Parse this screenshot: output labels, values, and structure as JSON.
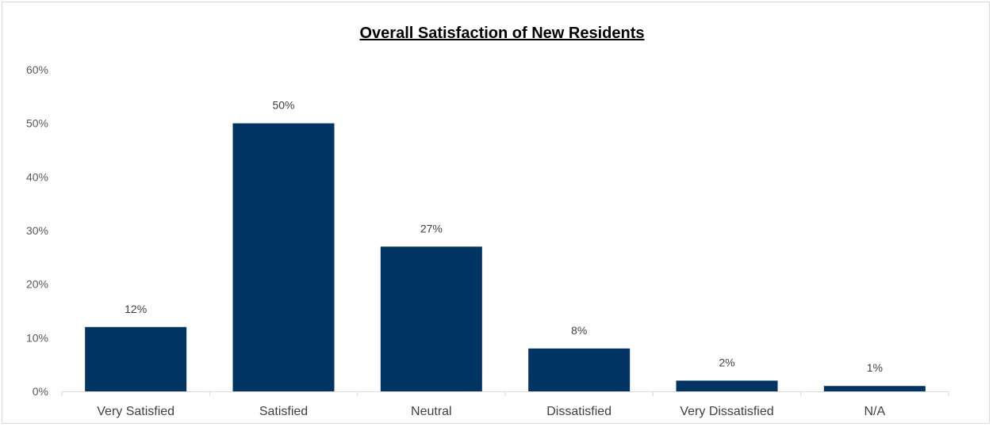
{
  "chart_data": {
    "type": "bar",
    "title": "Overall Satisfaction of New Residents",
    "categories": [
      "Very Satisfied",
      "Satisfied",
      "Neutral",
      "Dissatisfied",
      "Very Dissatisfied",
      "N/A"
    ],
    "values": [
      12,
      50,
      27,
      8,
      2,
      1
    ],
    "data_labels": [
      "12%",
      "50%",
      "27%",
      "8%",
      "2%",
      "1%"
    ],
    "yticks": [
      0,
      10,
      20,
      30,
      40,
      50,
      60
    ],
    "ytick_labels": [
      "0%",
      "10%",
      "20%",
      "30%",
      "40%",
      "50%",
      "60%"
    ],
    "ylim": [
      0,
      60
    ],
    "xlabel": "",
    "ylabel": "",
    "grid": false,
    "legend": "none",
    "bar_color": "#003462"
  }
}
